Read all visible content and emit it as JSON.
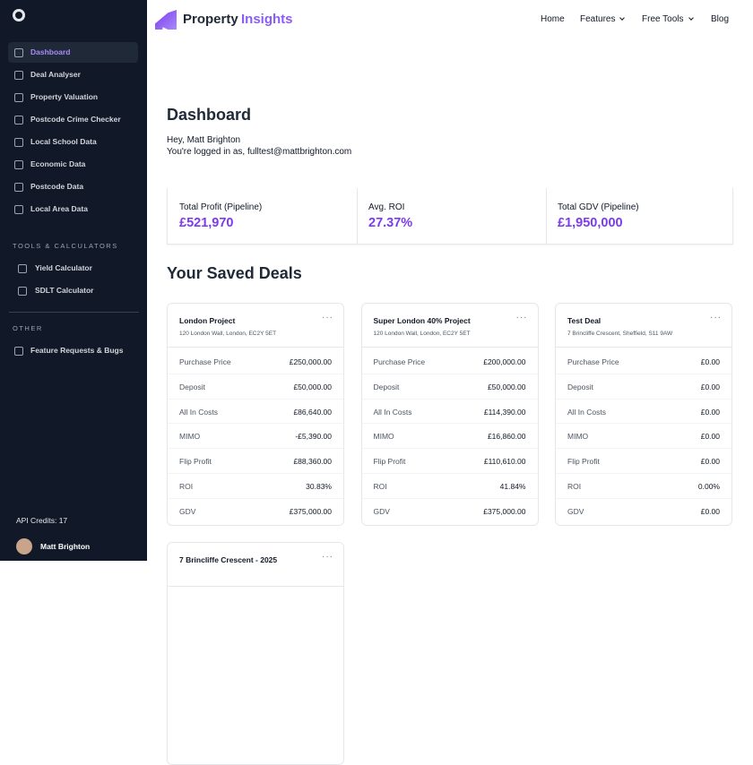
{
  "sidebar": {
    "nav": [
      "Dashboard",
      "Deal Analyser",
      "Property Valuation",
      "Postcode Crime Checker",
      "Local School Data",
      "Economic Data",
      "Postcode Data",
      "Local Area Data"
    ],
    "tools_heading": "TOOLS & CALCULATORS",
    "tools": [
      "Yield Calculator",
      "SDLT Calculator"
    ],
    "other_heading": "OTHER",
    "other": [
      "Feature Requests & Bugs"
    ],
    "api_credits": "API Credits: 17",
    "user": "Matt Brighton"
  },
  "header": {
    "logo_a": "Property",
    "logo_b": "Insights",
    "nav": [
      "Home",
      "Features",
      "Free Tools",
      "Blog"
    ]
  },
  "main": {
    "title": "Dashboard",
    "greeting": "Hey, Matt Brighton",
    "login": "You're logged in as, fulltest@mattbrighton.com",
    "stats": [
      {
        "label": "Total Profit (Pipeline)",
        "value": "£521,970"
      },
      {
        "label": "Avg. ROI",
        "value": "27.37%"
      },
      {
        "label": "Total GDV (Pipeline)",
        "value": "£1,950,000"
      }
    ],
    "saved_title": "Your Saved Deals",
    "deals": [
      {
        "name": "London Project",
        "address": "120 London Wall, London, EC2Y 5ET",
        "rows": [
          [
            "Purchase Price",
            "£250,000.00"
          ],
          [
            "Deposit",
            "£50,000.00"
          ],
          [
            "All In Costs",
            "£86,640.00"
          ],
          [
            "MIMO",
            "-£5,390.00"
          ],
          [
            "Flip Profit",
            "£88,360.00"
          ],
          [
            "ROI",
            "30.83%"
          ],
          [
            "GDV",
            "£375,000.00"
          ]
        ]
      },
      {
        "name": "Super London 40% Project",
        "address": "120 London Wall, London, EC2Y 5ET",
        "rows": [
          [
            "Purchase Price",
            "£200,000.00"
          ],
          [
            "Deposit",
            "£50,000.00"
          ],
          [
            "All In Costs",
            "£114,390.00"
          ],
          [
            "MIMO",
            "£16,860.00"
          ],
          [
            "Flip Profit",
            "£110,610.00"
          ],
          [
            "ROI",
            "41.84%"
          ],
          [
            "GDV",
            "£375,000.00"
          ]
        ]
      },
      {
        "name": "Test Deal",
        "address": "7 Brincliffe Crescent, Sheffield, S11 9AW",
        "rows": [
          [
            "Purchase Price",
            "£0.00"
          ],
          [
            "Deposit",
            "£0.00"
          ],
          [
            "All In Costs",
            "£0.00"
          ],
          [
            "MIMO",
            "£0.00"
          ],
          [
            "Flip Profit",
            "£0.00"
          ],
          [
            "ROI",
            "0.00%"
          ],
          [
            "GDV",
            "£0.00"
          ]
        ]
      },
      {
        "name": "7 Brincliffe Crescent - 2025"
      }
    ]
  }
}
